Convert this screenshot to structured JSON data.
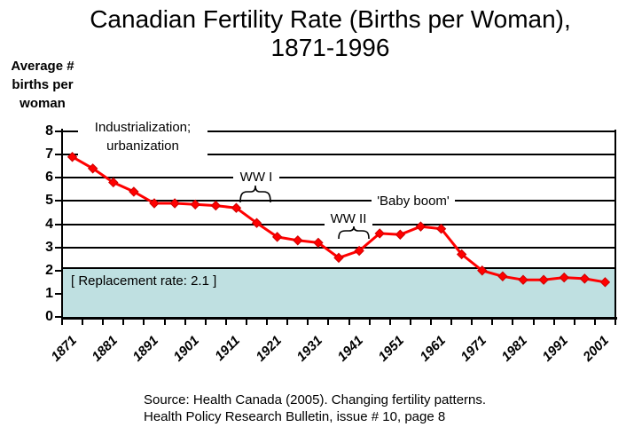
{
  "title": {
    "line1": "Canadian Fertility Rate (Births per Woman),",
    "line2": "1871-1996"
  },
  "y_axis_title": {
    "line1": "Average #",
    "line2": "births per",
    "line3": "woman"
  },
  "annotations": {
    "industrialization_line1": "Industrialization;",
    "industrialization_line2": "urbanization",
    "ww1": "WW I",
    "ww2": "WW II",
    "baby_boom": "'Baby boom'",
    "replacement": "[ Replacement rate: 2.1 ]"
  },
  "source": {
    "line1": "Source: Health Canada (2005). Changing fertility patterns.",
    "line2": "Health Policy Research Bulletin, issue # 10, page 8"
  },
  "colors": {
    "line": "#ff0000",
    "marker_fill": "#ff0000",
    "marker_edge": "#cc0000",
    "band_fill": "#bfe0e1",
    "grid": "#000000",
    "text": "#000000",
    "callout_bg": "#ffffff"
  },
  "chart_data": {
    "type": "line",
    "title": "Canadian Fertility Rate (Births per Woman), 1871-1996",
    "xlabel": "",
    "ylabel": "Average # births per woman",
    "x": [
      1871,
      1876,
      1881,
      1886,
      1891,
      1896,
      1901,
      1906,
      1911,
      1916,
      1921,
      1926,
      1931,
      1936,
      1941,
      1946,
      1951,
      1956,
      1961,
      1966,
      1971,
      1976,
      1981,
      1986,
      1991,
      1996,
      2001
    ],
    "values": [
      6.9,
      6.4,
      5.8,
      5.4,
      4.9,
      4.9,
      4.85,
      4.8,
      4.7,
      4.05,
      3.45,
      3.3,
      3.2,
      2.55,
      2.85,
      3.6,
      3.55,
      3.9,
      3.8,
      2.7,
      2.0,
      1.75,
      1.6,
      1.6,
      1.7,
      1.65,
      1.5
    ],
    "x_tick_labels": [
      "1871",
      "1881",
      "1891",
      "1901",
      "1911",
      "1921",
      "1931",
      "1941",
      "1951",
      "1961",
      "1971",
      "1981",
      "1991",
      "2001"
    ],
    "y_ticks": [
      0,
      1,
      2,
      3,
      4,
      5,
      6,
      7,
      8
    ],
    "ylim": [
      0,
      8
    ],
    "grid": true,
    "legend": "none",
    "marker": "diamond",
    "band": {
      "from": 0,
      "to": 2.1,
      "label": "[ Replacement rate: 2.1 ]"
    }
  }
}
